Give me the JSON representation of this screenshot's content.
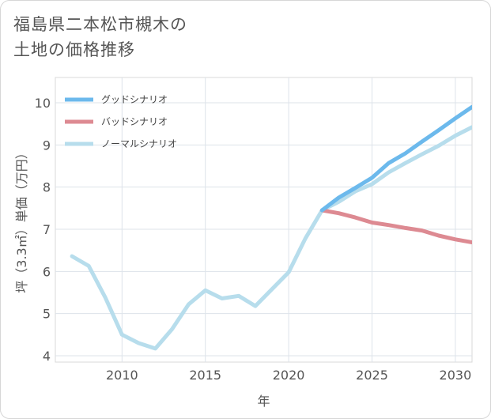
{
  "title": "福島県二本松市槻木の\n土地の価格推移",
  "chart_data": {
    "type": "line",
    "title": "福島県二本松市槻木の土地の価格推移",
    "xlabel": "年",
    "ylabel": "坪（3.3㎡）単価（万円）",
    "xlim": [
      2006,
      2031
    ],
    "ylim": [
      3.85,
      10.6
    ],
    "xticks": [
      2010,
      2015,
      2020,
      2025,
      2030
    ],
    "yticks": [
      4,
      5,
      6,
      7,
      8,
      9,
      10
    ],
    "grid": true,
    "legend_position": "top-left",
    "series": [
      {
        "name": "グッドシナリオ",
        "color": "#6cb9ec",
        "x": [
          2022,
          2023,
          2024,
          2025,
          2026,
          2027,
          2028,
          2029,
          2030,
          2031
        ],
        "y": [
          7.45,
          7.75,
          7.98,
          8.22,
          8.57,
          8.8,
          9.08,
          9.35,
          9.63,
          9.9
        ]
      },
      {
        "name": "バッドシナリオ",
        "color": "#dd8a92",
        "x": [
          2022,
          2023,
          2024,
          2025,
          2026,
          2027,
          2028,
          2029,
          2030,
          2031
        ],
        "y": [
          7.45,
          7.38,
          7.28,
          7.16,
          7.1,
          7.03,
          6.97,
          6.85,
          6.76,
          6.69
        ]
      },
      {
        "name": "ノーマルシナリオ",
        "color": "#b7ddec",
        "x": [
          2007,
          2008,
          2009,
          2010,
          2011,
          2012,
          2013,
          2014,
          2015,
          2016,
          2017,
          2018,
          2019,
          2020,
          2021,
          2022,
          2023,
          2024,
          2025,
          2026,
          2027,
          2028,
          2029,
          2030,
          2031
        ],
        "y": [
          6.36,
          6.13,
          5.38,
          4.5,
          4.3,
          4.17,
          4.63,
          5.22,
          5.55,
          5.36,
          5.42,
          5.18,
          5.58,
          5.98,
          6.78,
          7.45,
          7.65,
          7.9,
          8.07,
          8.35,
          8.57,
          8.78,
          8.98,
          9.22,
          9.42
        ]
      }
    ]
  }
}
